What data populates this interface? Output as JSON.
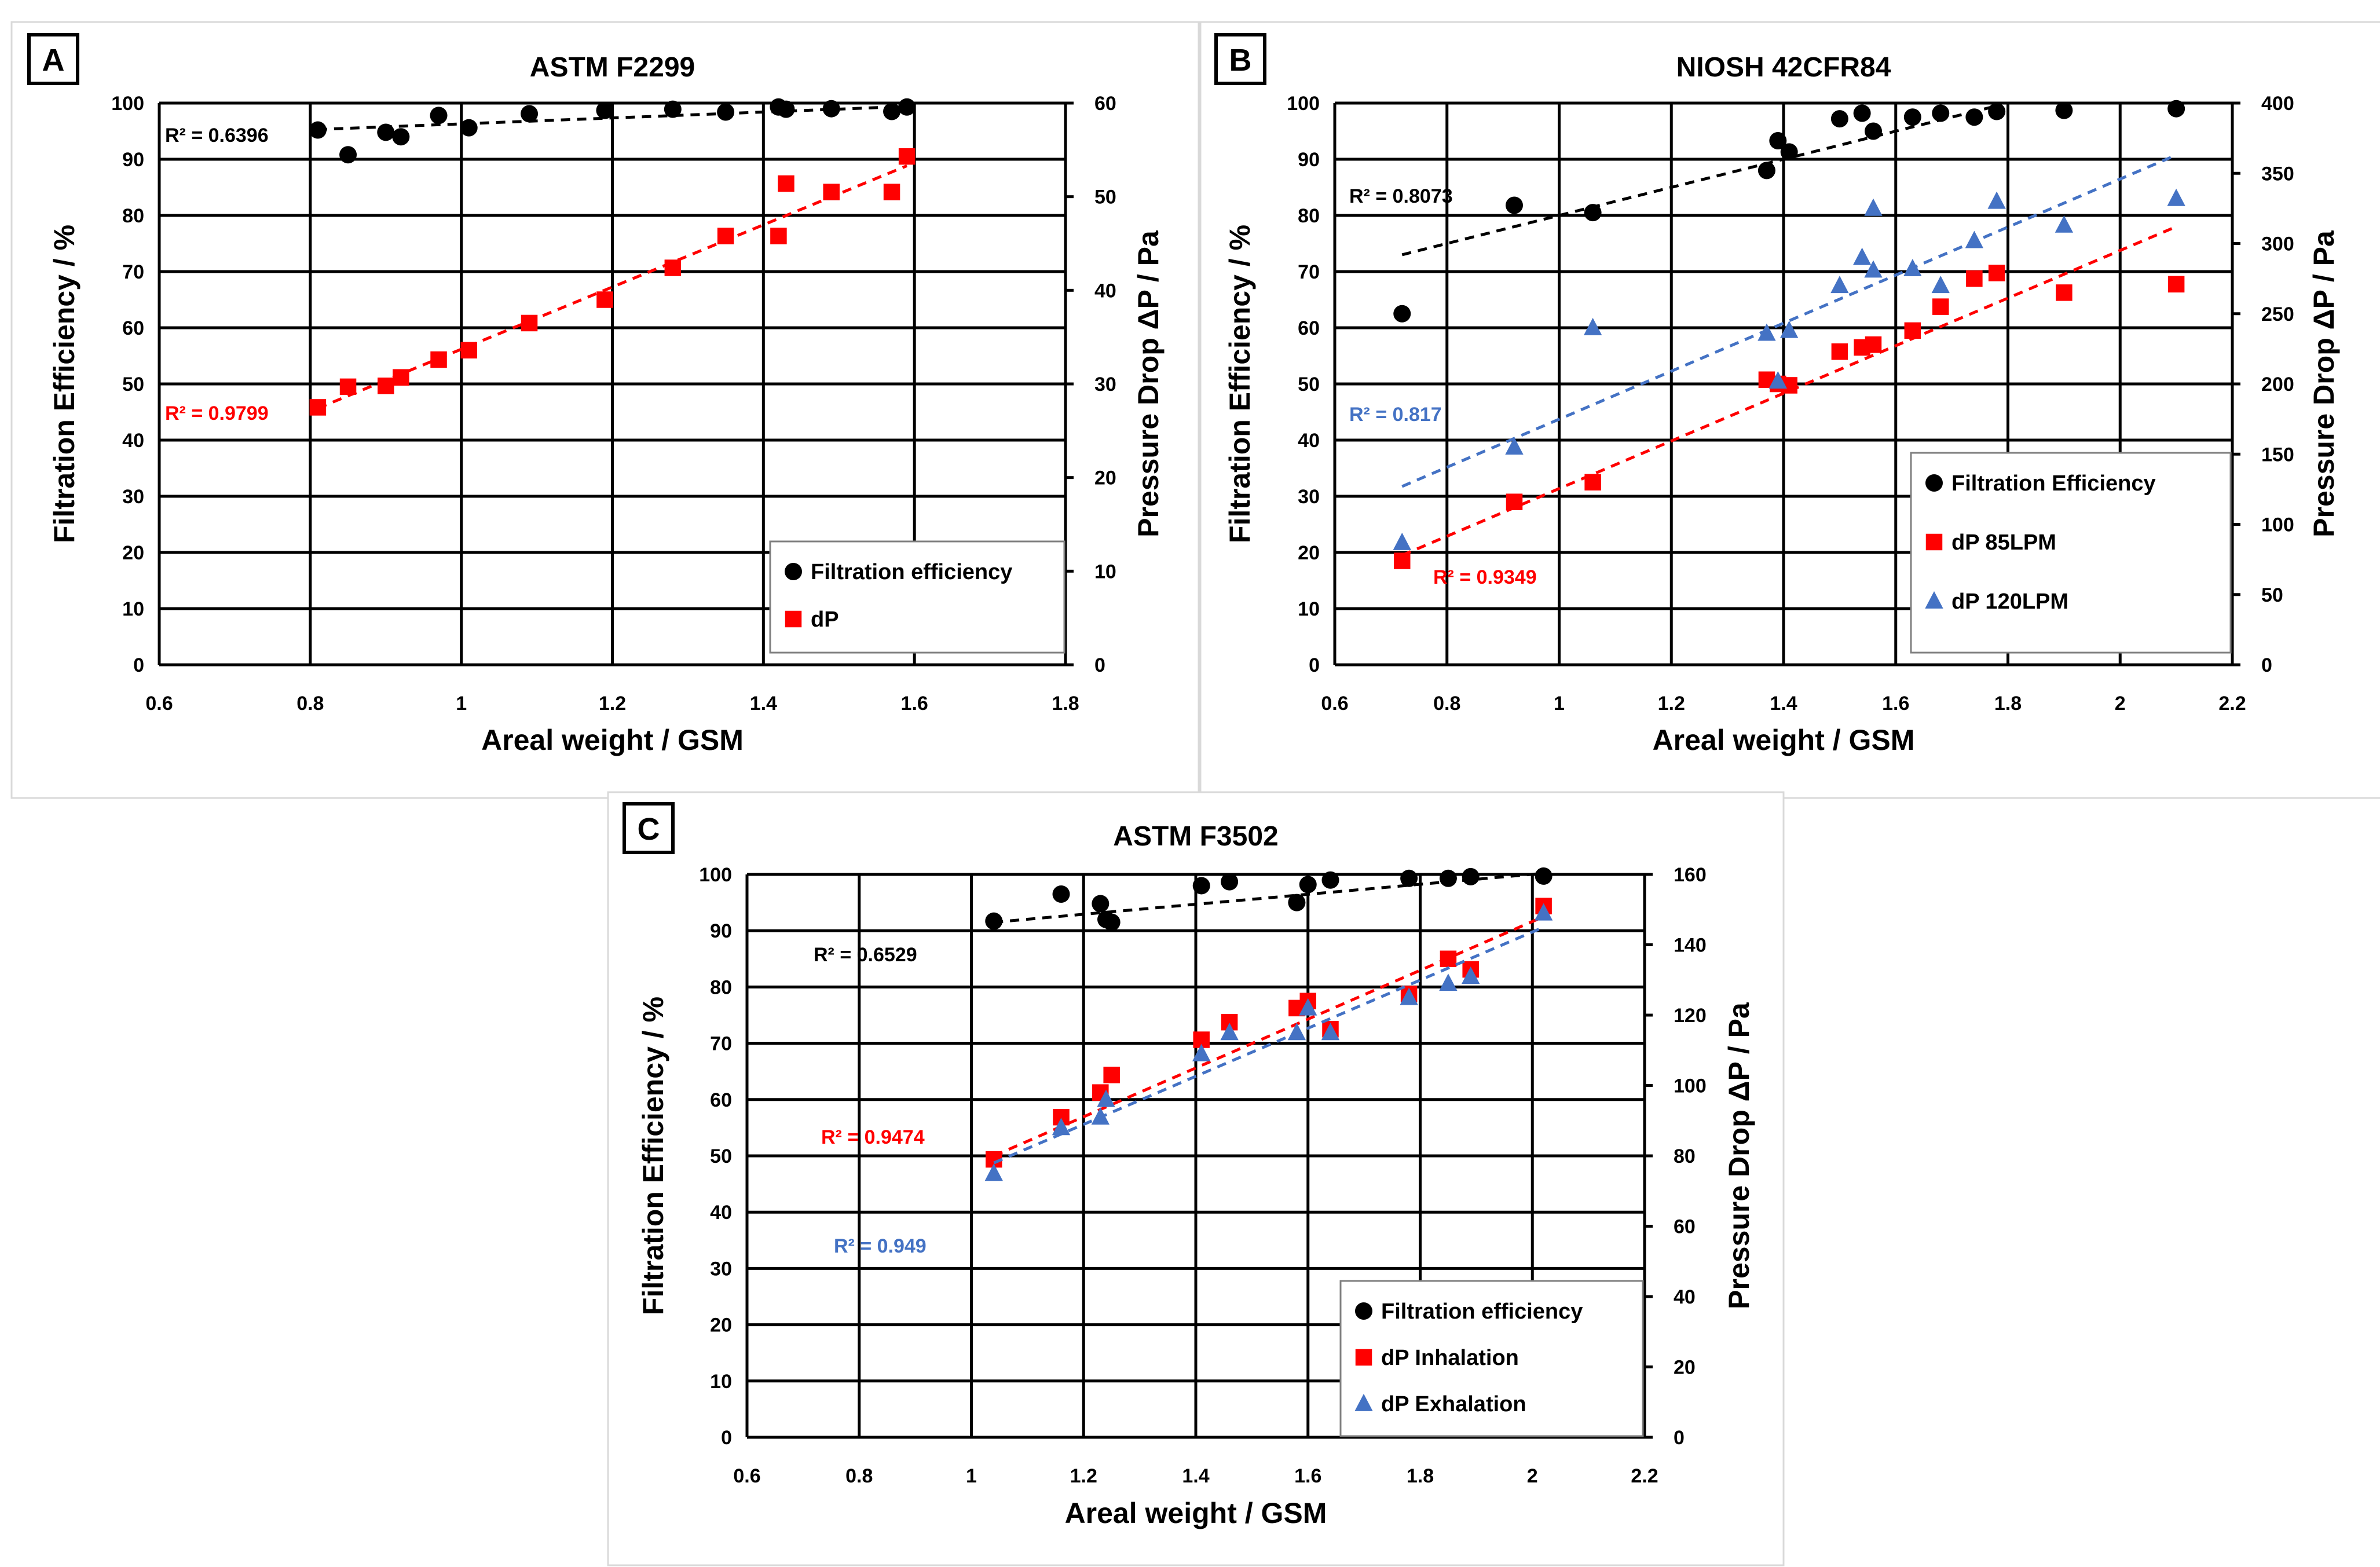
{
  "chart_data": [
    {
      "panel": "A",
      "type": "scatter",
      "title": "ASTM F2299",
      "xlabel": "Areal weight / GSM",
      "ylabel": "Filtration Efficiency / %",
      "y2label": "Pressure Drop ΔP / Pa",
      "xlim": [
        0.6,
        1.8
      ],
      "ylim": [
        0,
        100
      ],
      "y2lim": [
        0,
        60
      ],
      "x_ticks": [
        "0.6",
        "0.8",
        "1",
        "1.2",
        "1.4",
        "1.6",
        "1.8"
      ],
      "y_ticks": [
        "0",
        "10",
        "20",
        "30",
        "40",
        "50",
        "60",
        "70",
        "80",
        "90",
        "100"
      ],
      "y2_ticks": [
        "0",
        "10",
        "20",
        "30",
        "40",
        "50",
        "60"
      ],
      "legend_position": "bottom-right",
      "series": [
        {
          "name": "Filtration efficiency",
          "axis": "left",
          "marker": "circle",
          "color": "#000000",
          "x": [
            0.81,
            0.85,
            0.9,
            0.92,
            0.97,
            1.01,
            1.09,
            1.19,
            1.28,
            1.35,
            1.42,
            1.43,
            1.49,
            1.57,
            1.59
          ],
          "y": [
            95.2,
            90.8,
            94.8,
            94.0,
            97.8,
            95.6,
            98.1,
            98.7,
            98.9,
            98.4,
            99.3,
            98.9,
            99.0,
            98.5,
            99.3
          ],
          "trend": {
            "x0": 0.81,
            "y0": 95.3,
            "x1": 1.59,
            "y1": 99.4,
            "r2": "R² = 0.6396"
          }
        },
        {
          "name": "dP",
          "axis": "right",
          "marker": "square",
          "color": "#ff0000",
          "x": [
            0.81,
            0.85,
            0.9,
            0.92,
            0.97,
            1.01,
            1.09,
            1.19,
            1.28,
            1.35,
            1.42,
            1.43,
            1.49,
            1.57,
            1.59
          ],
          "y": [
            27.5,
            29.7,
            29.8,
            30.7,
            32.6,
            33.6,
            36.5,
            39.0,
            42.4,
            45.8,
            45.8,
            51.4,
            50.5,
            50.5,
            54.3
          ],
          "trend": {
            "x0": 0.81,
            "y0": 27.4,
            "x1": 1.59,
            "y1": 53.3,
            "r2": "R² = 0.9799"
          }
        }
      ]
    },
    {
      "panel": "B",
      "type": "scatter",
      "title": "NIOSH 42CFR84",
      "xlabel": "Areal weight / GSM",
      "ylabel": "Filtration Efficiency / %",
      "y2label": "Pressure Drop ΔP / Pa",
      "xlim": [
        0.6,
        2.2
      ],
      "ylim": [
        0,
        100
      ],
      "y2lim": [
        0,
        400
      ],
      "x_ticks": [
        "0.6",
        "0.8",
        "1",
        "1.2",
        "1.4",
        "1.6",
        "1.8",
        "2",
        "2.2"
      ],
      "y_ticks": [
        "0",
        "10",
        "20",
        "30",
        "40",
        "50",
        "60",
        "70",
        "80",
        "90",
        "100"
      ],
      "y2_ticks": [
        "0",
        "50",
        "100",
        "150",
        "200",
        "250",
        "300",
        "350",
        "400"
      ],
      "legend_position": "bottom-right",
      "series": [
        {
          "name": "Filtration Efficiency",
          "axis": "left",
          "marker": "circle",
          "color": "#000000",
          "x": [
            0.72,
            0.92,
            1.06,
            1.37,
            1.39,
            1.41,
            1.5,
            1.54,
            1.56,
            1.63,
            1.68,
            1.74,
            1.78,
            1.9,
            2.1
          ],
          "y": [
            62.5,
            81.8,
            80.5,
            88.0,
            93.3,
            91.3,
            97.2,
            98.2,
            95.0,
            97.5,
            98.2,
            97.5,
            98.5,
            98.7,
            99.0
          ],
          "trend": {
            "x0": 0.72,
            "y0": 73.0,
            "x1": 1.78,
            "y1": 99.5,
            "r2": "R² = 0.8073"
          }
        },
        {
          "name": "dP 85LPM",
          "axis": "right",
          "marker": "square",
          "color": "#ff0000",
          "x": [
            0.72,
            0.92,
            1.06,
            1.37,
            1.39,
            1.41,
            1.5,
            1.54,
            1.56,
            1.63,
            1.68,
            1.74,
            1.78,
            1.9,
            2.1
          ],
          "y": [
            74,
            116,
            130,
            203,
            200,
            199,
            223,
            226,
            228,
            238,
            255,
            275,
            279,
            265,
            271
          ],
          "trend": {
            "x0": 0.72,
            "y0": 78,
            "x1": 2.1,
            "y1": 312,
            "r2": "R² = 0.9349"
          }
        },
        {
          "name": "dP 120LPM",
          "axis": "right",
          "marker": "triangle",
          "color": "#4472c4",
          "x": [
            0.72,
            0.92,
            1.06,
            1.37,
            1.39,
            1.41,
            1.5,
            1.54,
            1.56,
            1.56,
            1.63,
            1.68,
            1.74,
            1.78,
            1.9,
            2.1
          ],
          "y": [
            87,
            155,
            240,
            236,
            202,
            238,
            270,
            290,
            325,
            281,
            282,
            270,
            302,
            330,
            313,
            332
          ],
          "trend": {
            "x0": 0.72,
            "y0": 127,
            "x1": 2.1,
            "y1": 363,
            "r2": "R² = 0.817"
          }
        }
      ]
    },
    {
      "panel": "C",
      "type": "scatter",
      "title": "ASTM F3502",
      "xlabel": "Areal weight / GSM",
      "ylabel": "Filtration Efficiency / %",
      "y2label": "Pressure Drop ΔP / Pa",
      "xlim": [
        0.6,
        2.2
      ],
      "ylim": [
        0,
        100
      ],
      "y2lim": [
        0,
        160
      ],
      "x_ticks": [
        "0.6",
        "0.8",
        "1",
        "1.2",
        "1.4",
        "1.6",
        "1.8",
        "2",
        "2.2"
      ],
      "y_ticks": [
        "0",
        "10",
        "20",
        "30",
        "40",
        "50",
        "60",
        "70",
        "80",
        "90",
        "100"
      ],
      "y2_ticks": [
        "0",
        "20",
        "40",
        "60",
        "80",
        "100",
        "120",
        "140",
        "160"
      ],
      "legend_position": "bottom-right",
      "series": [
        {
          "name": "Filtration efficiency",
          "axis": "left",
          "marker": "circle",
          "color": "#000000",
          "x": [
            1.04,
            1.16,
            1.23,
            1.24,
            1.25,
            1.41,
            1.46,
            1.58,
            1.6,
            1.64,
            1.78,
            1.85,
            1.89,
            2.02
          ],
          "y": [
            91.7,
            96.5,
            94.8,
            92.0,
            91.5,
            98.0,
            98.7,
            95.0,
            98.2,
            99.0,
            99.3,
            99.3,
            99.6,
            99.7
          ],
          "trend": {
            "x0": 1.04,
            "y0": 91.5,
            "x1": 2.02,
            "y1": 100.2,
            "r2": "R² = 0.6529"
          }
        },
        {
          "name": "dP Inhalation",
          "axis": "right",
          "marker": "square",
          "color": "#ff0000",
          "x": [
            1.04,
            1.16,
            1.23,
            1.25,
            1.41,
            1.46,
            1.58,
            1.6,
            1.64,
            1.78,
            1.85,
            1.89,
            2.02
          ],
          "y": [
            79,
            91,
            98,
            103,
            113,
            118,
            122,
            124,
            116,
            126,
            136,
            133,
            151
          ],
          "trend": {
            "x0": 1.04,
            "y0": 80,
            "x1": 2.02,
            "y1": 148,
            "r2": "R² = 0.9474"
          }
        },
        {
          "name": "dP Exhalation",
          "axis": "right",
          "marker": "triangle",
          "color": "#4472c4",
          "x": [
            1.04,
            1.16,
            1.23,
            1.24,
            1.41,
            1.46,
            1.58,
            1.6,
            1.64,
            1.78,
            1.85,
            1.89,
            2.02
          ],
          "y": [
            75,
            88,
            91,
            96,
            109,
            115,
            115,
            122,
            115,
            125,
            129,
            131,
            149
          ],
          "trend": {
            "x0": 1.04,
            "y0": 78,
            "x1": 2.02,
            "y1": 145,
            "r2": "R² = 0.949"
          }
        }
      ]
    }
  ]
}
